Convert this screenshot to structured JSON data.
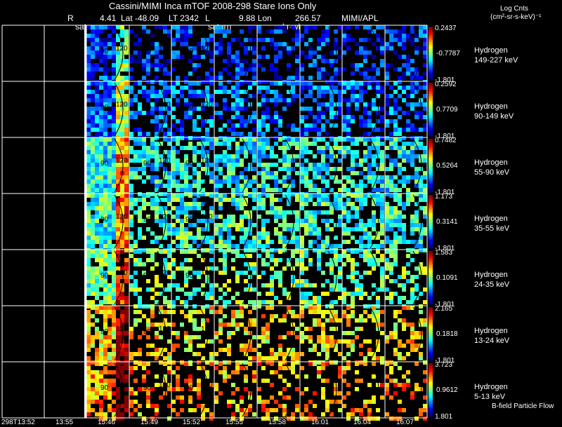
{
  "header": {
    "title": "Cassini/MIMI Inca mTOF  2008-298   Stare   Ions Only",
    "line2": {
      "r_label": "R",
      "r": "4.41",
      "lat": "Lat -48.09",
      "lt": "LT 2342",
      "l_label": "L",
      "lon": "9.88 Lon",
      "lon_value": "266.57",
      "org": "MIMI/APL"
    },
    "markers": [
      "satur",
      "saturn",
      "skr-wl"
    ],
    "units_title": "Log Cnts",
    "units": "(cm²-sr-s-keV)⁻¹"
  },
  "chart_data": {
    "type": "heatmap",
    "description_panels": "Grid of energetic-neutral/ion images; rows are energy channels, columns are time steps",
    "time_ticks": [
      "298T13:52",
      "13:55",
      "15:46",
      "15:49",
      "15:52",
      "15:55",
      "15:58",
      "16:01",
      "16:04",
      "16:07"
    ],
    "contour_labels": [
      "90",
      "120"
    ],
    "rows": [
      {
        "species": "Hydrogen",
        "energy": "149-227 keV",
        "cb_max": "0.2437",
        "cb_mid": "-0.7787",
        "cb_min": "-1.801",
        "base": 0.15,
        "density": 0.45
      },
      {
        "species": "Hydrogen",
        "energy": "90-149 keV",
        "cb_max": "0.2592",
        "cb_mid": "0.7709",
        "cb_min": "-1.801",
        "base": 0.22,
        "density": 0.55
      },
      {
        "species": "Hydrogen",
        "energy": "55-90 keV",
        "cb_max": "0.7482",
        "cb_mid": "0.5264",
        "cb_min": "-1.801",
        "base": 0.38,
        "density": 0.65
      },
      {
        "species": "Hydrogen",
        "energy": "35-55 keV",
        "cb_max": "1.173",
        "cb_mid": "0.3141",
        "cb_min": "-1.801",
        "base": 0.42,
        "density": 0.62
      },
      {
        "species": "Hydrogen",
        "energy": "24-35 keV",
        "cb_max": "1.583",
        "cb_mid": "0.1091",
        "cb_min": "-1.801",
        "base": 0.48,
        "density": 0.45
      },
      {
        "species": "Hydrogen",
        "energy": "13-24 keV",
        "cb_max": "2.165",
        "cb_mid": "0.1818",
        "cb_min": "-1.801",
        "base": 0.65,
        "density": 0.42
      },
      {
        "species": "Hydrogen",
        "energy": "5-13 keV",
        "cb_max": "3.723",
        "cb_mid": "0.9612",
        "cb_min": "1.801",
        "base": 0.72,
        "density": 0.32
      }
    ]
  },
  "footer": {
    "note": "B-field Particle Flow"
  },
  "colors": {
    "grid": "#ffffff",
    "background": "#000000"
  }
}
